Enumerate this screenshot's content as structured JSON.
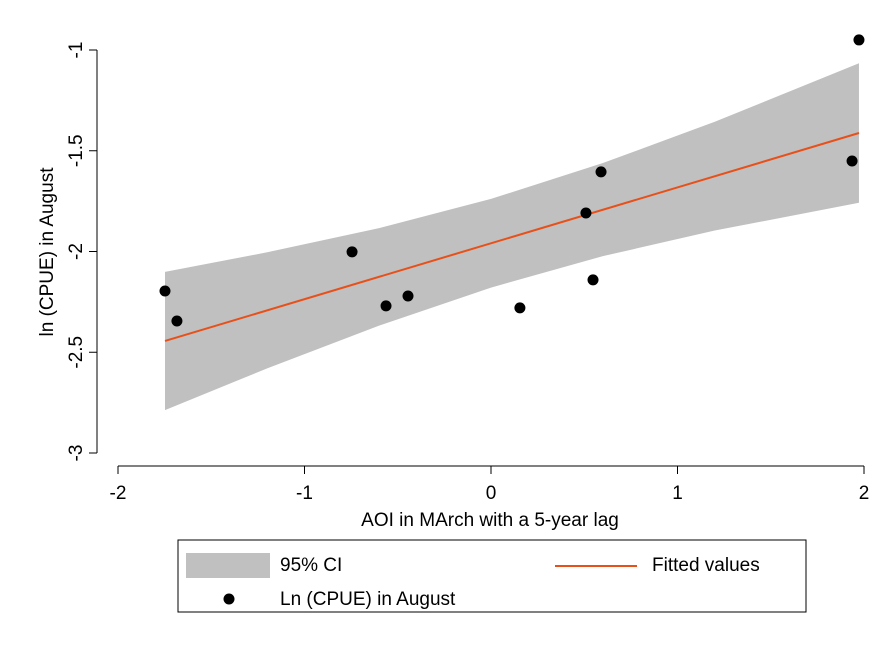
{
  "chart_data": {
    "type": "scatter",
    "x_label": "AOI in MArch with a 5-year lag",
    "y_label": "ln (CPUE) in August",
    "xlim": [
      -2,
      2
    ],
    "ylim": [
      -3,
      -1
    ],
    "xticks": [
      -2,
      -1,
      0,
      1,
      2
    ],
    "yticks": [
      -3,
      -2.5,
      -2,
      -1.5,
      -1
    ],
    "series": [
      {
        "name": "95% CI",
        "kind": "band",
        "color": "#c0c0c0",
        "x": [
          -1.748,
          -1.2,
          -0.6,
          0,
          0.6,
          1.2,
          1.973
        ],
        "upper": [
          -2.101,
          -2.004,
          -1.884,
          -1.739,
          -1.561,
          -1.356,
          -1.066
        ],
        "lower": [
          -2.787,
          -2.58,
          -2.368,
          -2.179,
          -2.023,
          -1.896,
          -1.758
        ]
      },
      {
        "name": "Fitted values",
        "kind": "line",
        "color": "#e8501a",
        "x": [
          -1.748,
          1.973
        ],
        "values": [
          -2.444,
          -1.412
        ]
      },
      {
        "name": "Ln (CPUE) in August",
        "kind": "points",
        "color": "#000000",
        "x": [
          -1.748,
          -1.684,
          -0.745,
          -0.563,
          -0.445,
          0.155,
          0.509,
          0.547,
          0.59,
          1.936,
          1.973
        ],
        "values": [
          -2.196,
          -2.345,
          -2.002,
          -2.27,
          -2.221,
          -2.28,
          -1.809,
          -2.141,
          -1.605,
          -1.551,
          -0.95
        ]
      }
    ]
  }
}
